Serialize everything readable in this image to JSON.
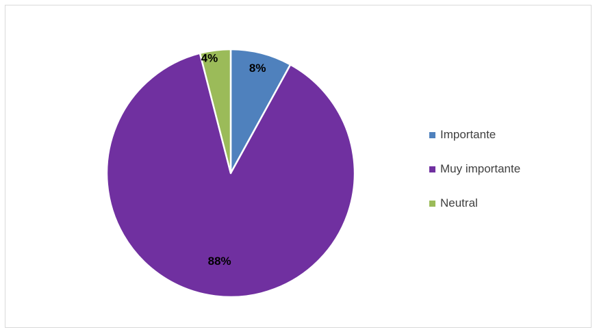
{
  "chart_data": {
    "type": "pie",
    "title": "",
    "slices": [
      {
        "label": "Importante",
        "value": 8,
        "value_label": "8%",
        "color": "#4f81bd"
      },
      {
        "label": "Muy importante",
        "value": 88,
        "value_label": "88%",
        "color": "#7030a0"
      },
      {
        "label": "Neutral",
        "value": 4,
        "value_label": "4%",
        "color": "#9bbb59"
      }
    ],
    "start_angle_deg": 0,
    "direction": "clockwise",
    "legend_position": "right"
  }
}
